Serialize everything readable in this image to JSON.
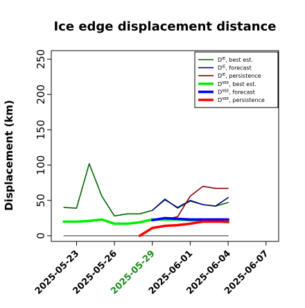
{
  "chart_data": {
    "type": "line",
    "title": "Ice edge displacement distance",
    "ylabel": "Displacement (km)",
    "xlabel": "",
    "ylim": [
      -8,
      262
    ],
    "yticks": [
      0,
      50,
      100,
      150,
      200,
      250
    ],
    "xlim": [
      "2025-05-21",
      "2025-06-08"
    ],
    "xticks": [
      "2025-05-23",
      "2025-05-26",
      "2025-05-29",
      "2025-06-01",
      "2025-06-04",
      "2025-06-07"
    ],
    "highlight_tick": "2025-05-29",
    "highlight_color": "#1a8c1a",
    "grid": false,
    "legend_position": "top-right",
    "series": [
      {
        "name": "D^IE, best est.",
        "legend": {
          "base": "D",
          "sup": "IE",
          "rest": ", best est."
        },
        "color": "#006400",
        "width": 1.6,
        "x": [
          "2025-05-22",
          "2025-05-23",
          "2025-05-24",
          "2025-05-25",
          "2025-05-26",
          "2025-05-27",
          "2025-05-28",
          "2025-05-29",
          "2025-05-30",
          "2025-05-31",
          "2025-06-01",
          "2025-06-02",
          "2025-06-03",
          "2025-06-04"
        ],
        "values": [
          40,
          39,
          102,
          56,
          28,
          31,
          31,
          36,
          52,
          39,
          49,
          44,
          42,
          47
        ]
      },
      {
        "name": "D^IE, forecast",
        "legend": {
          "base": "D",
          "sup": "IE",
          "rest": ", forecast"
        },
        "color": "#00008b",
        "width": 1.6,
        "x": [
          "2025-05-29",
          "2025-05-30",
          "2025-05-31",
          "2025-06-01",
          "2025-06-02",
          "2025-06-03",
          "2025-06-04"
        ],
        "values": [
          36,
          51,
          40,
          50,
          44,
          42,
          54
        ]
      },
      {
        "name": "D^IE, persistence",
        "legend": {
          "base": "D",
          "sup": "IE",
          "rest": ", persistence"
        },
        "color": "#8b0000",
        "width": 1.6,
        "x": [
          "2025-05-29",
          "2025-05-30",
          "2025-05-31",
          "2025-06-01",
          "2025-06-02",
          "2025-06-03",
          "2025-06-04"
        ],
        "values": [
          24,
          23,
          27,
          56,
          70,
          67,
          67
        ]
      },
      {
        "name": "D^IIEE, best est.",
        "legend": {
          "base": "D",
          "sup": "IIEE",
          "rest": ", best est."
        },
        "color": "#00ee00",
        "width": 3.6,
        "x": [
          "2025-05-22",
          "2025-05-23",
          "2025-05-24",
          "2025-05-25",
          "2025-05-26",
          "2025-05-27",
          "2025-05-28",
          "2025-05-29",
          "2025-05-30",
          "2025-05-31",
          "2025-06-01",
          "2025-06-02",
          "2025-06-03",
          "2025-06-04"
        ],
        "values": [
          20,
          20,
          21,
          23,
          17,
          17,
          19,
          23,
          23,
          23,
          22,
          22,
          21,
          19
        ]
      },
      {
        "name": "D^IIEE, forecast",
        "legend": {
          "base": "D",
          "sup": "IIEE",
          "rest": ", forecast"
        },
        "color": "#0000ff",
        "width": 3.6,
        "x": [
          "2025-05-29",
          "2025-05-30",
          "2025-05-31",
          "2025-06-01",
          "2025-06-02",
          "2025-06-03",
          "2025-06-04"
        ],
        "values": [
          22,
          25,
          24,
          23,
          23,
          23,
          23
        ]
      },
      {
        "name": "D^IIEE, persistence",
        "legend": {
          "base": "D",
          "sup": "IIEE",
          "rest": ", persistence"
        },
        "color": "#ff0000",
        "width": 3.6,
        "x": [
          "2025-05-28",
          "2025-05-29",
          "2025-05-30",
          "2025-05-31",
          "2025-06-01",
          "2025-06-02",
          "2025-06-03",
          "2025-06-04"
        ],
        "values": [
          0,
          11,
          14,
          15,
          17,
          20,
          20,
          20
        ]
      },
      {
        "name": "",
        "legend": null,
        "color": "#555555",
        "width": 1.2,
        "x": [
          "2025-05-22",
          "2025-06-04"
        ],
        "values": [
          0,
          0
        ]
      }
    ]
  }
}
